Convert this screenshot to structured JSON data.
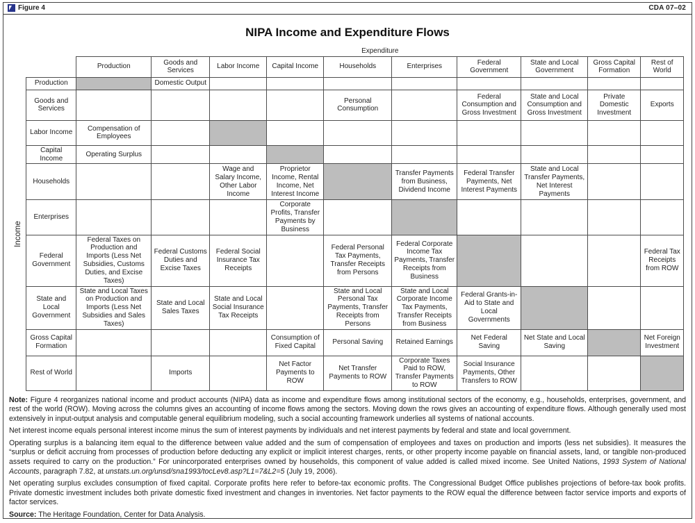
{
  "page": {
    "figure_label": "Figure 4",
    "doc_code": "CDA 07–02",
    "title": "NIPA Income and Expenditure Flows"
  },
  "colors": {
    "gray_cell": "#bdbdbd",
    "border": "#4d4d4d",
    "logo_navy": "#27348b"
  },
  "table": {
    "expenditure_label": "Expenditure",
    "income_label": "Income",
    "columns": [
      "Production",
      "Goods and Services",
      "Labor Income",
      "Capital Income",
      "Households",
      "Enterprises",
      "Federal Government",
      "State and Local Government",
      "Gross Capital Formation",
      "Rest of World"
    ],
    "rows": [
      {
        "label": "Production",
        "cells": [
          {
            "gray": true
          },
          {
            "text": "Domestic Output"
          },
          {},
          {},
          {},
          {},
          {},
          {},
          {},
          {}
        ]
      },
      {
        "label": "Goods and Services",
        "cells": [
          {},
          {},
          {},
          {},
          {
            "text": "Personal Consumption"
          },
          {},
          {
            "text": "Federal Consumption and Gross Investment"
          },
          {
            "text": "State and Local Consumption and Gross Investment"
          },
          {
            "text": "Private Domestic Investment"
          },
          {
            "text": "Exports"
          }
        ]
      },
      {
        "label": "Labor Income",
        "cells": [
          {
            "text": "Compensation of Employees"
          },
          {},
          {
            "gray": true
          },
          {},
          {},
          {},
          {},
          {},
          {},
          {}
        ]
      },
      {
        "label": "Capital Income",
        "cells": [
          {
            "text": "Operating Surplus"
          },
          {},
          {},
          {
            "gray": true
          },
          {},
          {},
          {},
          {},
          {},
          {}
        ]
      },
      {
        "label": "Households",
        "cells": [
          {},
          {},
          {
            "text": "Wage and Salary Income, Other Labor Income"
          },
          {
            "text": "Proprietor Income, Rental Income, Net Interest Income"
          },
          {
            "gray": true
          },
          {
            "text": "Transfer Payments from Business, Dividend Income"
          },
          {
            "text": "Federal Transfer Payments, Net Interest Payments"
          },
          {
            "text": "State and Local Transfer Payments, Net Interest Payments"
          },
          {},
          {}
        ]
      },
      {
        "label": "Enterprises",
        "cells": [
          {},
          {},
          {},
          {
            "text": "Corporate Profits, Transfer Payments by Business"
          },
          {},
          {
            "gray": true
          },
          {},
          {},
          {},
          {}
        ]
      },
      {
        "label": "Federal Government",
        "cells": [
          {
            "text": "Federal Taxes on Production and Imports (Less Net Subsidies, Customs Duties, and Excise Taxes)"
          },
          {
            "text": "Federal Customs Duties and Excise Taxes"
          },
          {
            "text": "Federal Social Insurance Tax Receipts"
          },
          {},
          {
            "text": "Federal Personal Tax Payments, Transfer Receipts from Persons"
          },
          {
            "text": "Federal Corporate Income Tax Payments, Transfer Receipts from Business"
          },
          {
            "gray": true
          },
          {},
          {},
          {
            "text": "Federal Tax Receipts from ROW"
          }
        ]
      },
      {
        "label": "State and Local Government",
        "cells": [
          {
            "text": "State and Local Taxes on Production and Imports (Less Net Subsidies and Sales Taxes)"
          },
          {
            "text": "State and Local Sales Taxes"
          },
          {
            "text": "State and Local Social Insurance Tax Receipts"
          },
          {},
          {
            "text": "State and Local Personal Tax Payments, Transfer Receipts from Persons"
          },
          {
            "text": "State and Local Corporate Income Tax Payments, Transfer Receipts from Business"
          },
          {
            "text": "Federal Grants-in-Aid to State and Local Governments"
          },
          {
            "gray": true
          },
          {},
          {}
        ]
      },
      {
        "label": "Gross Capital Formation",
        "cells": [
          {},
          {},
          {},
          {
            "text": "Consumption of Fixed Capital"
          },
          {
            "text": "Personal Saving"
          },
          {
            "text": "Retained Earnings"
          },
          {
            "text": "Net Federal Saving"
          },
          {
            "text": "Net State and Local Saving"
          },
          {
            "gray": true
          },
          {
            "text": "Net Foreign Investment"
          }
        ]
      },
      {
        "label": "Rest of World",
        "cells": [
          {},
          {
            "text": "Imports"
          },
          {},
          {
            "text": "Net Factor Payments to ROW"
          },
          {
            "text": "Net Transfer Payments to ROW"
          },
          {
            "text": "Corporate Taxes Paid to ROW, Transfer Payments to ROW"
          },
          {
            "text": "Social Insurance Payments, Other Transfers to ROW"
          },
          {},
          {},
          {
            "gray": true
          }
        ]
      }
    ]
  },
  "notes": {
    "note_label": "Note:",
    "note_text": " Figure 4 reorganizes national income and product accounts (NIPA) data as income and expenditure flows among institutional sectors of the economy, e.g., households, enterprises, government, and rest of the world (ROW). Moving across the columns gives an accounting of income flows among the sectors. Moving down the rows gives an accounting of expenditure flows. Although generally used most extensively in input-output analysis and computable general equilibrium modeling, such a social accounting framework underlies all systems of national accounts.",
    "para2": "Net interest income equals personal interest income minus the sum of interest payments by individuals and net interest payments by federal and state and local government.",
    "para3_main": "Operating surplus is a balancing item equal to the difference between value added and the sum of compensation of employees and taxes on production and imports (less net subsidies). It measures the “surplus or deficit accruing from processes of production before deducting any explicit or implicit interest charges, rents, or other property income payable on financial assets, land, or tangible non-produced assets required to carry on the production.” For unincorporated enterprises owned by households, this component of value added is called mixed income. See United Nations, ",
    "para3_italic": "1993 System of National Accounts",
    "para3_mid": ", paragraph 7.82, at ",
    "para3_url": "unstats.un.org/unsd/sna1993/tocLev8.asp?L1=7&L2=5",
    "para3_end": " (July 19, 2006).",
    "para4": "Net operating surplus excludes consumption of fixed capital. Corporate profits here refer to before-tax economic profits. The Congressional Budget Office publishes projections of before-tax book profits. Private domestic investment includes both private domestic fixed investment and changes in inventories. Net factor payments to the ROW equal the difference between factor service imports and exports of factor services.",
    "source_label": "Source:",
    "source_text": " The Heritage Foundation, Center for Data Analysis."
  }
}
